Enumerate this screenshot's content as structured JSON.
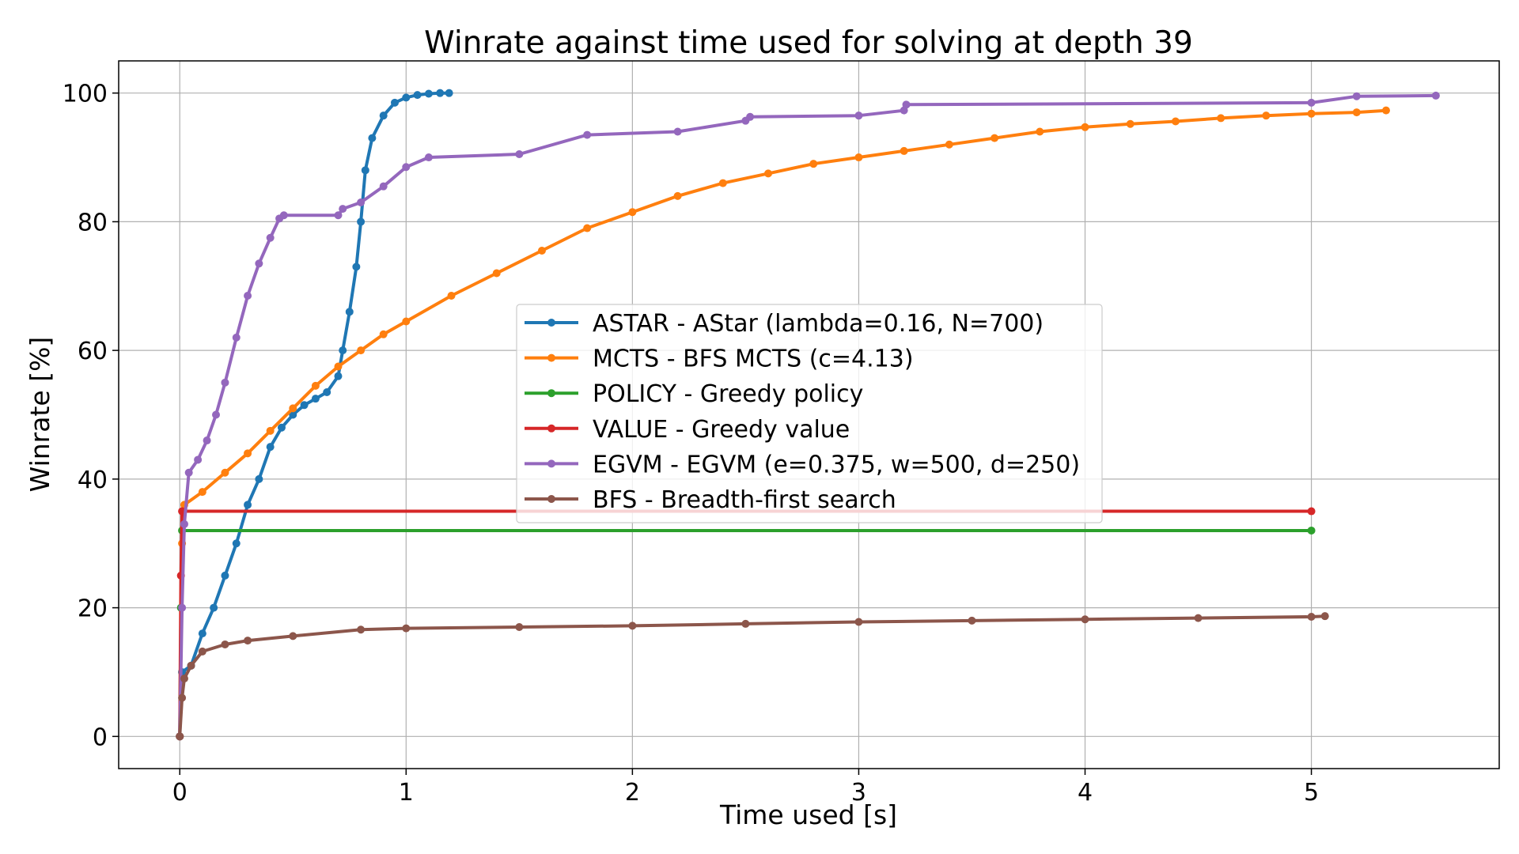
{
  "chart_data": {
    "type": "line",
    "title": "Winrate against time used for solving at depth 39",
    "xlabel": "Time used [s]",
    "ylabel": "Winrate [%]",
    "xlim": [
      -0.27,
      5.83
    ],
    "ylim": [
      -5,
      105
    ],
    "xticks": [
      0,
      1,
      2,
      3,
      4,
      5
    ],
    "xtick_labels": [
      "0",
      "1",
      "2",
      "3",
      "4",
      "5"
    ],
    "yticks": [
      0,
      20,
      40,
      60,
      80,
      100
    ],
    "ytick_labels": [
      "0",
      "20",
      "40",
      "60",
      "80",
      "100"
    ],
    "grid": true,
    "legend_placement": "center",
    "series": [
      {
        "name": "ASTAR - AStar (lambda=0.16, N=700)",
        "color": "#1f77b4",
        "x": [
          0,
          0.01,
          0.05,
          0.1,
          0.15,
          0.2,
          0.25,
          0.3,
          0.35,
          0.4,
          0.45,
          0.5,
          0.55,
          0.6,
          0.65,
          0.7,
          0.72,
          0.75,
          0.78,
          0.8,
          0.82,
          0.85,
          0.9,
          0.95,
          1.0,
          1.05,
          1.1,
          1.15,
          1.19
        ],
        "y": [
          0,
          10,
          11,
          16,
          20,
          25,
          30,
          36,
          40,
          45,
          48,
          50,
          51.5,
          52.5,
          53.5,
          56,
          60,
          66,
          73,
          80,
          88,
          93,
          96.5,
          98.5,
          99.3,
          99.7,
          99.9,
          100,
          100
        ]
      },
      {
        "name": "MCTS - BFS MCTS (c=4.13)",
        "color": "#ff7f0e",
        "x": [
          0,
          0.01,
          0.02,
          0.1,
          0.2,
          0.3,
          0.4,
          0.5,
          0.6,
          0.7,
          0.8,
          0.9,
          1.0,
          1.2,
          1.4,
          1.6,
          1.8,
          2.0,
          2.2,
          2.4,
          2.6,
          2.8,
          3.0,
          3.2,
          3.4,
          3.6,
          3.8,
          4.0,
          4.2,
          4.4,
          4.6,
          4.8,
          5.0,
          5.2,
          5.33
        ],
        "y": [
          0,
          30,
          36,
          38,
          41,
          44,
          47.5,
          51,
          54.5,
          57.5,
          60,
          62.5,
          64.5,
          68.5,
          72,
          75.5,
          79,
          81.5,
          84,
          86,
          87.5,
          89,
          90,
          91,
          92,
          93,
          94,
          94.7,
          95.2,
          95.6,
          96.1,
          96.5,
          96.8,
          97,
          97.3
        ]
      },
      {
        "name": "POLICY - Greedy policy",
        "color": "#2ca02c",
        "x": [
          0,
          0.005,
          0.01,
          5.0
        ],
        "y": [
          0,
          20,
          32,
          32
        ]
      },
      {
        "name": "VALUE - Greedy value",
        "color": "#d62728",
        "x": [
          0,
          0.005,
          0.01,
          5.0
        ],
        "y": [
          0,
          25,
          35,
          35
        ]
      },
      {
        "name": "EGVM - EGVM (e=0.375, w=500, d=250)",
        "color": "#9467bd",
        "x": [
          0,
          0.01,
          0.02,
          0.04,
          0.08,
          0.12,
          0.16,
          0.2,
          0.25,
          0.3,
          0.35,
          0.4,
          0.44,
          0.46,
          0.7,
          0.72,
          0.8,
          0.9,
          1.0,
          1.1,
          1.5,
          1.8,
          2.2,
          2.5,
          2.52,
          3.0,
          3.2,
          3.21,
          5.0,
          5.2,
          5.55
        ],
        "y": [
          0,
          20,
          33,
          41,
          43,
          46,
          50,
          55,
          62,
          68.5,
          73.5,
          77.5,
          80.5,
          81,
          81,
          82,
          83,
          85.5,
          88.5,
          90,
          90.5,
          93.5,
          94,
          95.7,
          96.3,
          96.5,
          97.3,
          98.2,
          98.5,
          99.5,
          99.6
        ]
      },
      {
        "name": "BFS - Breadth-first search",
        "color": "#8c564b",
        "x": [
          0,
          0.01,
          0.02,
          0.05,
          0.1,
          0.2,
          0.3,
          0.5,
          0.8,
          1.0,
          1.5,
          2.0,
          2.5,
          3.0,
          3.5,
          4.0,
          4.5,
          5.0,
          5.06
        ],
        "y": [
          0,
          6,
          9,
          11,
          13.2,
          14.3,
          14.9,
          15.6,
          16.6,
          16.8,
          17,
          17.2,
          17.5,
          17.8,
          18.0,
          18.2,
          18.4,
          18.6,
          18.7
        ]
      }
    ]
  }
}
